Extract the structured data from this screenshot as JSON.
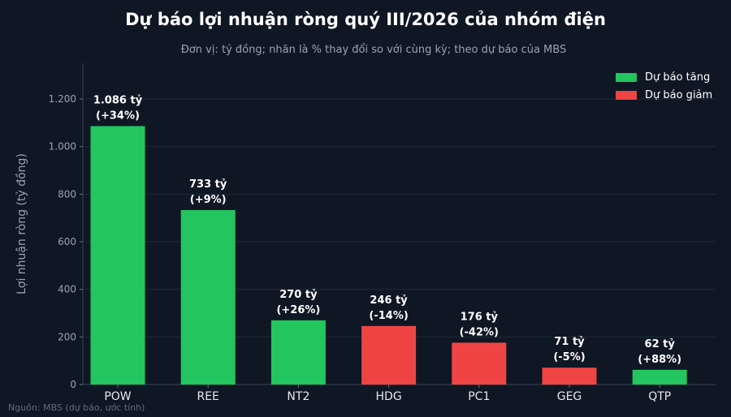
{
  "title": "Dự báo lợi nhuận ròng quý III/2026 của nhóm điện",
  "subtitle": "Đơn vị: tỷ đồng; nhãn là % thay đổi so với cùng kỳ; theo dự báo của MBS",
  "source": "Nguồn: MBS (dự báo, ước tính)",
  "legend": {
    "increase": {
      "label": "Dự báo tăng",
      "color": "#22c55e"
    },
    "decrease": {
      "label": "Dự báo giảm",
      "color": "#ef4444"
    }
  },
  "chart_data": {
    "type": "bar",
    "title": "Dự báo lợi nhuận ròng quý III/2026 của nhóm điện",
    "ylabel": "Lợi nhuận ròng (tỷ đồng)",
    "xlabel": "",
    "ylim": [
      0,
      1350
    ],
    "yticks": [
      0,
      200,
      400,
      600,
      800,
      1000,
      1200
    ],
    "ytick_labels": [
      "0",
      "200",
      "400",
      "600",
      "800",
      "1.000",
      "1.200"
    ],
    "grid": true,
    "legend_position": "top-right",
    "categories": [
      "POW",
      "REE",
      "NT2",
      "HDG",
      "PC1",
      "GEG",
      "QTP"
    ],
    "values": [
      1086,
      733,
      270,
      246,
      176,
      71,
      62
    ],
    "value_labels": [
      "1.086 tỷ",
      "733 tỷ",
      "270 tỷ",
      "246 tỷ",
      "176 tỷ",
      "71 tỷ",
      "62 tỷ"
    ],
    "change_labels": [
      "(+34%)",
      "(+9%)",
      "(+26%)",
      "(-14%)",
      "(-42%)",
      "(-5%)",
      "(+88%)"
    ],
    "direction": [
      "increase",
      "increase",
      "increase",
      "decrease",
      "decrease",
      "decrease",
      "increase"
    ]
  }
}
